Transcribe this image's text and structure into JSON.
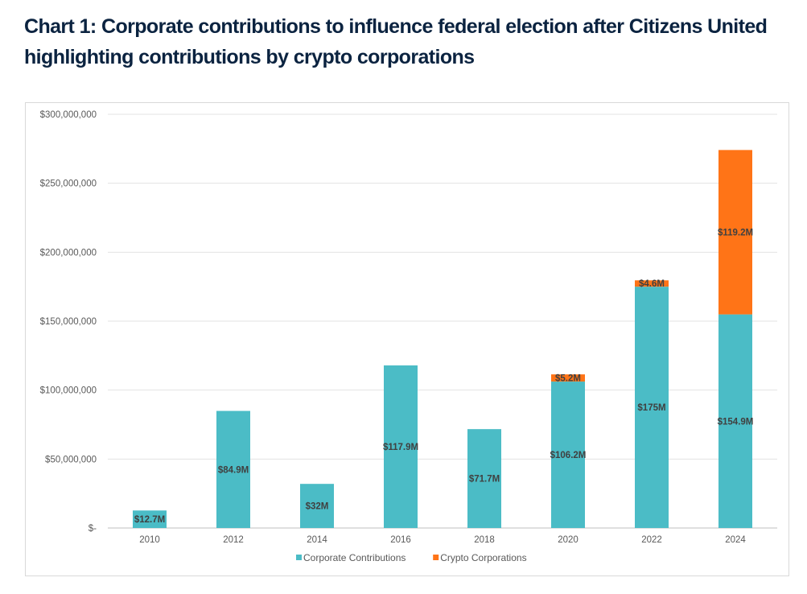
{
  "title": "Chart 1: Corporate contributions to influence federal election after Citizens United highlighting contributions by crypto corporations",
  "chart_data": {
    "type": "bar",
    "stacked": true,
    "categories": [
      "2010",
      "2012",
      "2014",
      "2016",
      "2018",
      "2020",
      "2022",
      "2024"
    ],
    "series": [
      {
        "name": "Corporate Contributions",
        "color": "#4bbcc6",
        "values": [
          12700000,
          84900000,
          32000000,
          117900000,
          71700000,
          106200000,
          175000000,
          154900000
        ],
        "labels": [
          "$12.7M",
          "$84.9M",
          "$32M",
          "$117.9M",
          "$71.7M",
          "$106.2M",
          "$175M",
          "$154.9M"
        ]
      },
      {
        "name": "Crypto Corporations",
        "color": "#ff7417",
        "values": [
          0,
          0,
          0,
          0,
          0,
          5200000,
          4600000,
          119200000
        ],
        "labels": [
          "",
          "",
          "",
          "",
          "",
          "$5.2M",
          "$4.6M",
          "$119.2M"
        ]
      }
    ],
    "yticks": [
      0,
      50000000,
      100000000,
      150000000,
      200000000,
      250000000,
      300000000
    ],
    "ytick_labels": [
      "$-",
      "$50,000,000",
      "$100,000,000",
      "$150,000,000",
      "$200,000,000",
      "$250,000,000",
      "$300,000,000"
    ],
    "ylim": [
      0,
      300000000
    ],
    "grid": true,
    "legend_position": "bottom"
  }
}
